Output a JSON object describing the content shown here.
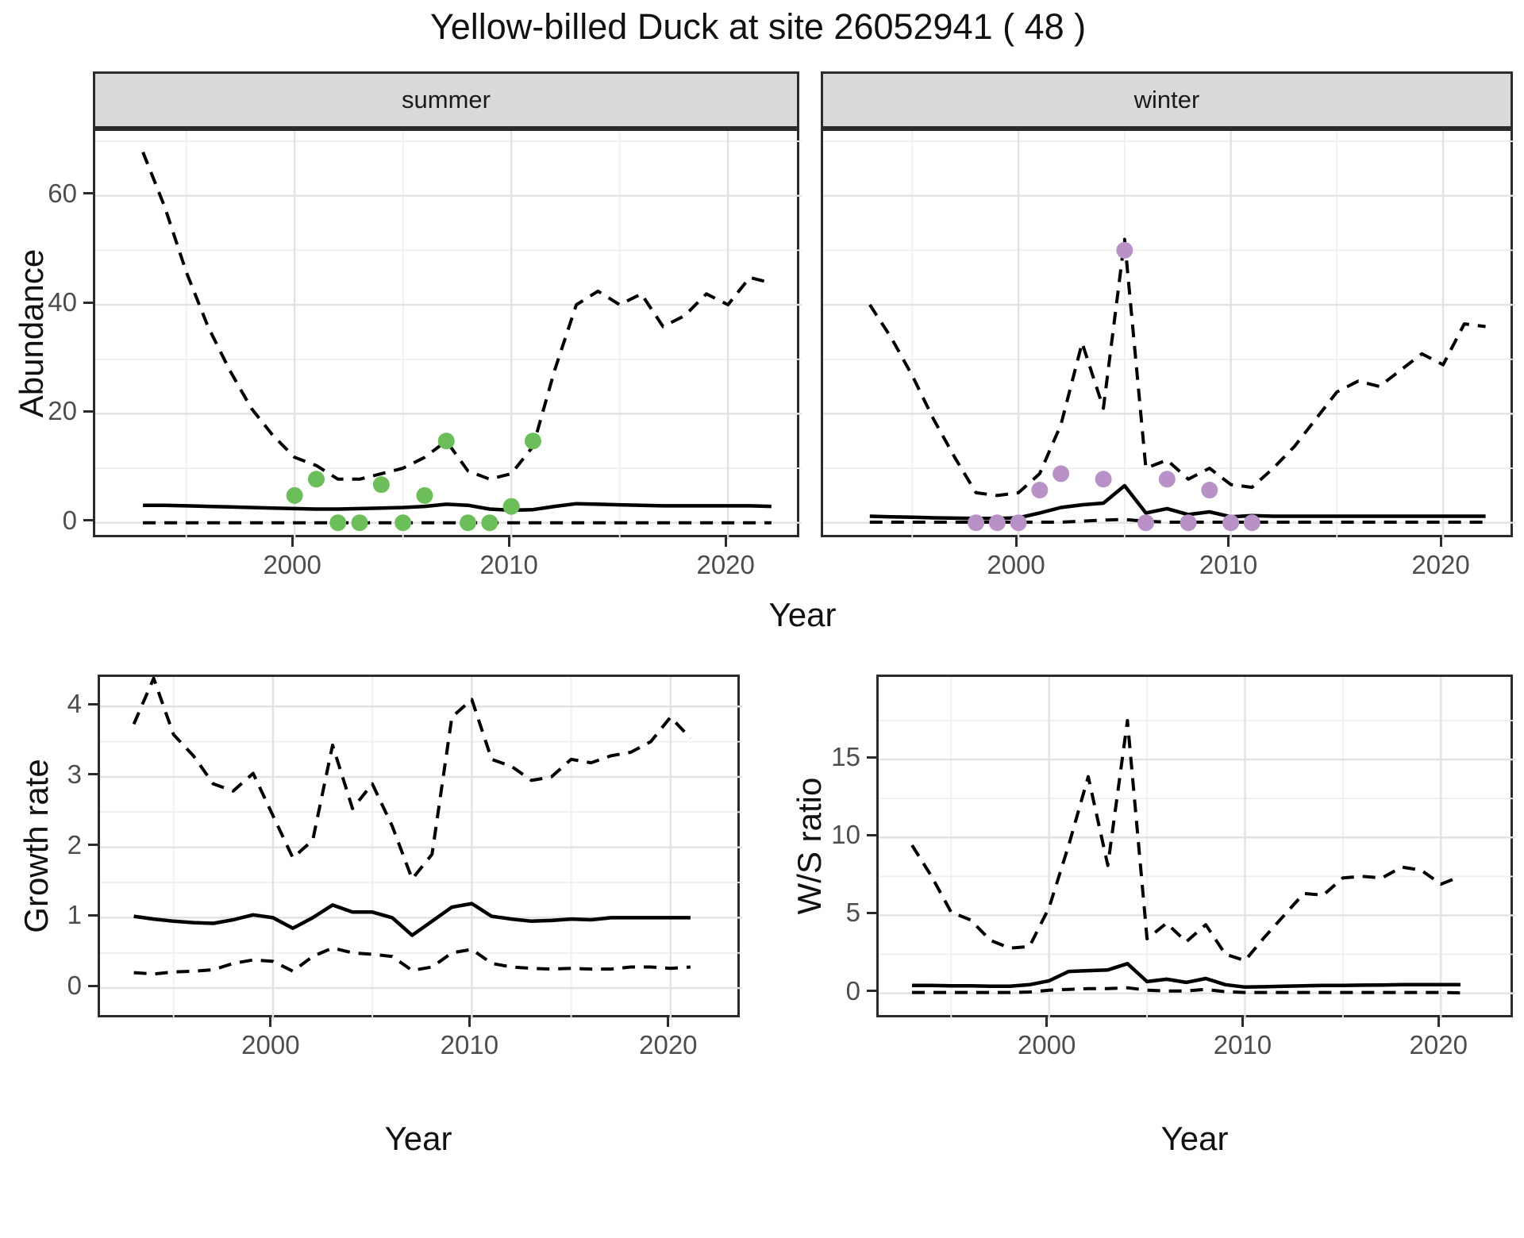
{
  "title": "Yellow-billed Duck at site 26052941 ( 48 )",
  "facets": {
    "summer": "summer",
    "winter": "winter"
  },
  "axis_titles": {
    "abundance": "Abundance",
    "year_top": "Year",
    "growth": "Growth rate",
    "ws": "W/S ratio",
    "year_bottom_left": "Year",
    "year_bottom_right": "Year"
  },
  "colors": {
    "summer_point": "#6cbe5a",
    "winter_point": "#b891c7",
    "line": "#000000",
    "panel_border": "#2b2b2b",
    "strip_bg": "#d9d9d9",
    "grid_major": "#e2e2e2",
    "grid_minor": "#efefef",
    "tick_label": "#4d4d4d"
  },
  "chart_data": [
    {
      "id": "summer",
      "type": "line",
      "facet_label": "summer",
      "xlabel": "Year",
      "ylabel": "Abundance",
      "xlim": [
        1990.8,
        2023.4
      ],
      "ylim": [
        -3.1,
        71.9
      ],
      "xticks": [
        2000,
        2010,
        2020
      ],
      "yticks": [
        0,
        20,
        40,
        60
      ],
      "minor_x": [
        1995,
        2005,
        2015
      ],
      "minor_y": [
        10,
        30,
        50,
        70
      ],
      "show_y_labels": true,
      "legend": "none",
      "grid": true,
      "series": [
        {
          "name": "upper_ci",
          "style": "dashed",
          "start_year": 1993,
          "values": [
            68,
            58,
            46,
            36,
            28,
            21,
            16,
            12,
            10.5,
            8,
            8,
            9,
            10,
            12,
            15,
            9.5,
            8,
            9,
            14,
            28,
            40,
            42.5,
            40,
            42,
            36,
            38,
            42,
            40,
            45,
            44
          ]
        },
        {
          "name": "median",
          "style": "solid",
          "start_year": 1993,
          "values": [
            3.2,
            3.2,
            3.1,
            3.0,
            2.9,
            2.8,
            2.7,
            2.6,
            2.5,
            2.5,
            2.6,
            2.7,
            2.8,
            3.0,
            3.4,
            3.2,
            2.5,
            2.3,
            2.4,
            3.0,
            3.5,
            3.4,
            3.3,
            3.2,
            3.1,
            3.1,
            3.1,
            3.1,
            3.1,
            3.0
          ]
        },
        {
          "name": "lower_ci",
          "style": "dashed",
          "start_year": 1993,
          "values": [
            0,
            0,
            0,
            0,
            0,
            0,
            0,
            0,
            0,
            0,
            0,
            0,
            0,
            0,
            0,
            0,
            0,
            0,
            0,
            0,
            0,
            0,
            0,
            0,
            0,
            0,
            0,
            0,
            0,
            0
          ]
        },
        {
          "name": "observed_counts",
          "style": "points",
          "color_key": "summer_point",
          "years": [
            2000,
            2001,
            2002,
            2003,
            2004,
            2005,
            2006,
            2007,
            2008,
            2009,
            2010,
            2011
          ],
          "values": [
            5,
            8,
            0,
            0,
            7,
            0,
            5,
            15,
            0,
            0,
            3,
            15
          ]
        }
      ]
    },
    {
      "id": "winter",
      "type": "line",
      "facet_label": "winter",
      "xlabel": "Year",
      "ylabel": "Abundance",
      "xlim": [
        1990.8,
        2023.4
      ],
      "ylim": [
        -3.1,
        71.9
      ],
      "xticks": [
        2000,
        2010,
        2020
      ],
      "yticks": [
        0,
        20,
        40,
        60
      ],
      "minor_x": [
        1995,
        2005,
        2015
      ],
      "minor_y": [
        10,
        30,
        50,
        70
      ],
      "show_y_labels": false,
      "legend": "none",
      "grid": true,
      "series": [
        {
          "name": "upper_ci",
          "style": "dashed",
          "start_year": 1993,
          "values": [
            40,
            34,
            27,
            19,
            12,
            5.5,
            5,
            5.5,
            9,
            18,
            33,
            21,
            52,
            10,
            11.5,
            8,
            10,
            7,
            6.5,
            10,
            14,
            19,
            24,
            26,
            25,
            28,
            31,
            29,
            36.5,
            36
          ]
        },
        {
          "name": "median",
          "style": "solid",
          "start_year": 1993,
          "values": [
            1.2,
            1.1,
            1.0,
            0.9,
            0.85,
            0.8,
            0.8,
            0.9,
            1.8,
            2.8,
            3.3,
            3.6,
            6.8,
            1.8,
            2.6,
            1.5,
            2.0,
            1.1,
            1.3,
            1.2,
            1.2,
            1.2,
            1.2,
            1.2,
            1.2,
            1.2,
            1.2,
            1.2,
            1.2,
            1.2
          ]
        },
        {
          "name": "lower_ci",
          "style": "dashed",
          "start_year": 1993,
          "values": [
            0.1,
            0.1,
            0.1,
            0.1,
            0.1,
            0.1,
            0.1,
            0.1,
            0.1,
            0.1,
            0.3,
            0.5,
            0.6,
            0.3,
            0.1,
            0.1,
            0.1,
            0.1,
            0.1,
            0.1,
            0.1,
            0.1,
            0.1,
            0.1,
            0.1,
            0.1,
            0.1,
            0.1,
            0.1,
            0.1
          ]
        },
        {
          "name": "observed_counts",
          "style": "points",
          "color_key": "winter_point",
          "years": [
            1998,
            1999,
            2000,
            2001,
            2002,
            2004,
            2005,
            2006,
            2007,
            2008,
            2009,
            2010,
            2011
          ],
          "values": [
            0,
            0,
            0,
            6,
            9,
            8,
            50,
            0,
            8,
            0,
            6,
            0,
            0
          ]
        }
      ]
    },
    {
      "id": "growth_rate",
      "type": "line",
      "facet_label": "",
      "xlabel": "Year",
      "ylabel": "Growth rate",
      "xlim": [
        1991.3,
        2023.6
      ],
      "ylim": [
        -0.45,
        4.42
      ],
      "xticks": [
        2000,
        2010,
        2020
      ],
      "yticks": [
        0,
        1,
        2,
        3,
        4
      ],
      "minor_x": [
        1995,
        2005,
        2015
      ],
      "minor_y": [
        0.5,
        1.5,
        2.5,
        3.5
      ],
      "show_y_labels": true,
      "legend": "none",
      "grid": true,
      "series": [
        {
          "name": "upper_ci",
          "style": "dashed",
          "start_year": 1993,
          "values": [
            3.75,
            4.4,
            3.6,
            3.3,
            2.9,
            2.8,
            3.05,
            2.45,
            1.85,
            2.1,
            3.45,
            2.55,
            2.9,
            2.3,
            1.55,
            1.9,
            3.85,
            4.1,
            3.25,
            3.15,
            2.95,
            3.0,
            3.25,
            3.2,
            3.3,
            3.35,
            3.5,
            3.85,
            3.55
          ]
        },
        {
          "name": "median",
          "style": "solid",
          "start_year": 1993,
          "values": [
            1.02,
            0.98,
            0.95,
            0.93,
            0.92,
            0.97,
            1.04,
            1.0,
            0.85,
            1.0,
            1.18,
            1.08,
            1.08,
            1.0,
            0.75,
            0.95,
            1.15,
            1.2,
            1.02,
            0.98,
            0.95,
            0.96,
            0.98,
            0.97,
            1.0,
            1.0,
            1.0,
            1.0,
            1.0
          ]
        },
        {
          "name": "lower_ci",
          "style": "dashed",
          "start_year": 1993,
          "values": [
            0.22,
            0.2,
            0.23,
            0.24,
            0.26,
            0.35,
            0.4,
            0.38,
            0.24,
            0.45,
            0.57,
            0.5,
            0.48,
            0.45,
            0.25,
            0.3,
            0.5,
            0.55,
            0.35,
            0.3,
            0.28,
            0.27,
            0.28,
            0.27,
            0.27,
            0.3,
            0.3,
            0.28,
            0.3
          ]
        }
      ]
    },
    {
      "id": "ws_ratio",
      "type": "line",
      "facet_label": "",
      "xlabel": "Year",
      "ylabel": "W/S ratio",
      "xlim": [
        1991.3,
        2023.8
      ],
      "ylim": [
        -1.7,
        20.3
      ],
      "xticks": [
        2000,
        2010,
        2020
      ],
      "yticks": [
        0,
        5,
        10,
        15
      ],
      "minor_x": [
        1995,
        2005,
        2015
      ],
      "minor_y": [
        2.5,
        7.5,
        12.5,
        17.5
      ],
      "show_y_labels": true,
      "legend": "none",
      "grid": true,
      "series": [
        {
          "name": "upper_ci",
          "style": "dashed",
          "start_year": 1993,
          "values": [
            9.5,
            7.5,
            5.2,
            4.7,
            3.4,
            2.9,
            3.0,
            5.5,
            9.5,
            13.9,
            8.2,
            17.5,
            3.5,
            4.5,
            3.3,
            4.4,
            2.5,
            2.1,
            3.6,
            5.0,
            6.4,
            6.3,
            7.4,
            7.5,
            7.4,
            8.1,
            7.9,
            7.0,
            7.5
          ]
        },
        {
          "name": "median",
          "style": "solid",
          "start_year": 1993,
          "values": [
            0.5,
            0.5,
            0.48,
            0.48,
            0.45,
            0.45,
            0.55,
            0.8,
            1.4,
            1.45,
            1.5,
            1.9,
            0.75,
            0.9,
            0.7,
            0.95,
            0.55,
            0.4,
            0.42,
            0.45,
            0.48,
            0.5,
            0.5,
            0.52,
            0.53,
            0.55,
            0.55,
            0.55,
            0.55
          ]
        },
        {
          "name": "lower_ci",
          "style": "dashed",
          "start_year": 1993,
          "values": [
            0.05,
            0.05,
            0.05,
            0.05,
            0.05,
            0.05,
            0.08,
            0.2,
            0.25,
            0.3,
            0.3,
            0.35,
            0.2,
            0.15,
            0.15,
            0.25,
            0.1,
            0.05,
            0.05,
            0.05,
            0.05,
            0.05,
            0.05,
            0.05,
            0.05,
            0.05,
            0.05,
            0.05,
            0.02
          ]
        }
      ]
    }
  ]
}
